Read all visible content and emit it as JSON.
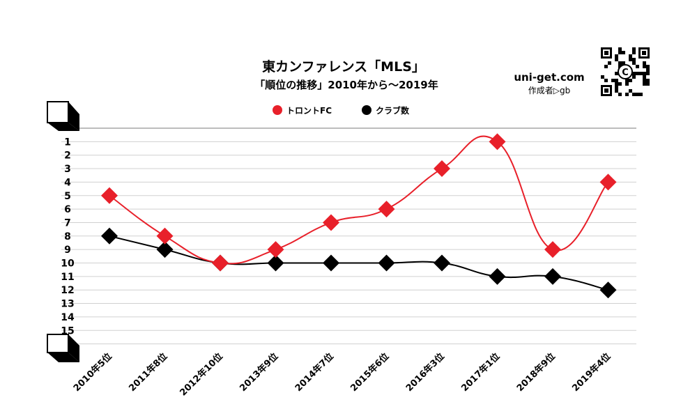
{
  "header": {
    "title": "東カンファレンス「MLS」",
    "subtitle": "「順位の推移」2010年から～2019年",
    "site": "uni-get.com",
    "author": "作成者▷gb"
  },
  "chart_data": {
    "type": "line",
    "y_reversed": true,
    "ylim": [
      0,
      16
    ],
    "y_ticks": [
      "1",
      "2",
      "3",
      "4",
      "5",
      "6",
      "7",
      "8",
      "9",
      "10",
      "11",
      "12",
      "13",
      "14",
      "15"
    ],
    "categories": [
      "2010年5位",
      "2011年8位",
      "2012年10位",
      "2013年9位",
      "2014年7位",
      "2015年6位",
      "2016年3位",
      "2017年1位",
      "2018年9位",
      "2019年4位"
    ],
    "series": [
      {
        "name": "トロントFC",
        "color": "#e8202a",
        "values": [
          5,
          8,
          10,
          9,
          7,
          6,
          3,
          1,
          9,
          4
        ]
      },
      {
        "name": "クラブ数",
        "color": "#000000",
        "values": [
          8,
          9,
          10,
          10,
          10,
          10,
          10,
          11,
          11,
          12
        ]
      }
    ],
    "legend_position": "top-center",
    "grid": true
  }
}
